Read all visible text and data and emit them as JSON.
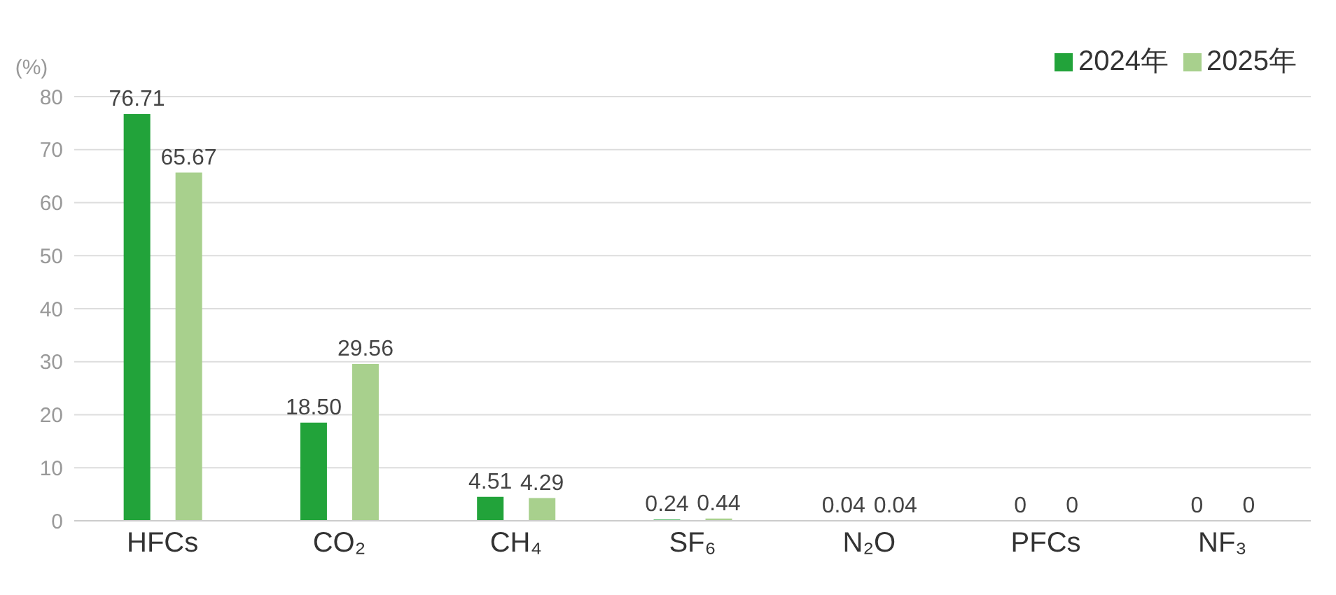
{
  "chart_data": {
    "type": "bar",
    "ylabel": "(%)",
    "categories": [
      "HFCs",
      "CO₂",
      "CH₄",
      "SF₆",
      "N₂O",
      "PFCs",
      "NF₃"
    ],
    "series": [
      {
        "name": "2024年",
        "color": "#22a33a",
        "values": [
          76.71,
          18.5,
          4.51,
          0.24,
          0.04,
          0,
          0
        ],
        "value_labels": [
          "76.71",
          "18.50",
          "4.51",
          "0.24",
          "0.04",
          "0",
          "0"
        ]
      },
      {
        "name": "2025年",
        "color": "#a8d08d",
        "values": [
          65.67,
          29.56,
          4.29,
          0.44,
          0.04,
          0,
          0
        ],
        "value_labels": [
          "65.67",
          "29.56",
          "4.29",
          "0.44",
          "0.04",
          "0",
          "0"
        ]
      }
    ],
    "ylim": [
      0,
      80
    ],
    "yticks": [
      0,
      10,
      20,
      30,
      40,
      50,
      60,
      70,
      80
    ],
    "grid": "y",
    "legend": "top right"
  }
}
